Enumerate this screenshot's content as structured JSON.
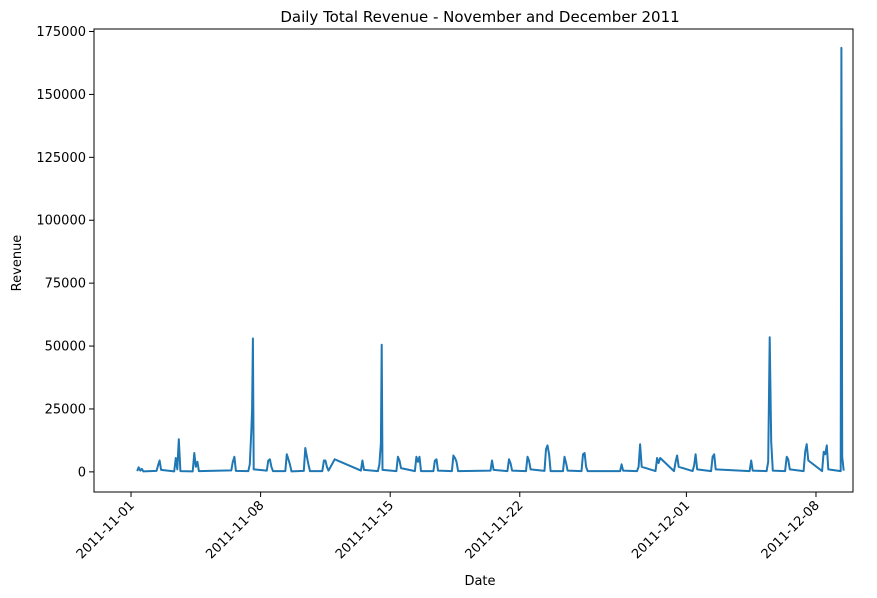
{
  "chart_data": {
    "type": "line",
    "title": "Daily Total Revenue - November and December 2011",
    "xlabel": "Date",
    "ylabel": "Revenue",
    "xlim": [
      "2011-10-30",
      "2011-12-10"
    ],
    "ylim": [
      -8000,
      176000
    ],
    "x_ticks": [
      "2011-11-01",
      "2011-11-08",
      "2011-11-15",
      "2011-11-22",
      "2011-12-01",
      "2011-12-08"
    ],
    "y_ticks": [
      0,
      25000,
      50000,
      75000,
      100000,
      125000,
      150000,
      175000
    ],
    "grid": false,
    "line_color": "#1f77b4",
    "series": [
      {
        "points": [
          [
            "2011-11-01 08:00",
            300
          ],
          [
            "2011-11-01 10:00",
            1800
          ],
          [
            "2011-11-01 12:00",
            500
          ],
          [
            "2011-11-01 14:00",
            1200
          ],
          [
            "2011-11-01 16:00",
            200
          ],
          [
            "2011-11-02 09:00",
            400
          ],
          [
            "2011-11-02 11:00",
            2500
          ],
          [
            "2011-11-02 13:00",
            4500
          ],
          [
            "2011-11-02 15:00",
            800
          ],
          [
            "2011-11-03 08:00",
            200
          ],
          [
            "2011-11-03 10:00",
            5500
          ],
          [
            "2011-11-03 12:00",
            1000
          ],
          [
            "2011-11-03 14:00",
            13000
          ],
          [
            "2011-11-03 16:00",
            300
          ],
          [
            "2011-11-04 08:00",
            200
          ],
          [
            "2011-11-04 10:00",
            7500
          ],
          [
            "2011-11-04 12:00",
            2000
          ],
          [
            "2011-11-04 14:00",
            4000
          ],
          [
            "2011-11-04 16:00",
            300
          ],
          [
            "2011-11-06 10:00",
            600
          ],
          [
            "2011-11-06 12:00",
            4000
          ],
          [
            "2011-11-06 14:00",
            6000
          ],
          [
            "2011-11-06 16:00",
            400
          ],
          [
            "2011-11-07 08:00",
            300
          ],
          [
            "2011-11-07 10:00",
            3000
          ],
          [
            "2011-11-07 12:00",
            17000
          ],
          [
            "2011-11-07 13:00",
            25000
          ],
          [
            "2011-11-07 14:00",
            53000
          ],
          [
            "2011-11-07 15:00",
            1000
          ],
          [
            "2011-11-08 08:00",
            500
          ],
          [
            "2011-11-08 10:00",
            4500
          ],
          [
            "2011-11-08 12:00",
            5000
          ],
          [
            "2011-11-08 14:00",
            2000
          ],
          [
            "2011-11-08 16:00",
            300
          ],
          [
            "2011-11-09 08:00",
            300
          ],
          [
            "2011-11-09 10:00",
            7000
          ],
          [
            "2011-11-09 12:00",
            5000
          ],
          [
            "2011-11-09 14:00",
            3000
          ],
          [
            "2011-11-09 16:00",
            200
          ],
          [
            "2011-11-10 08:00",
            400
          ],
          [
            "2011-11-10 10:00",
            9500
          ],
          [
            "2011-11-10 12:00",
            6000
          ],
          [
            "2011-11-10 14:00",
            3000
          ],
          [
            "2011-11-10 16:00",
            300
          ],
          [
            "2011-11-11 08:00",
            300
          ],
          [
            "2011-11-11 10:00",
            4500
          ],
          [
            "2011-11-11 12:00",
            4500
          ],
          [
            "2011-11-11 14:00",
            2000
          ],
          [
            "2011-11-11 16:00",
            500
          ],
          [
            "2011-11-12 00:00",
            5000
          ],
          [
            "2011-11-13 10:00",
            500
          ],
          [
            "2011-11-13 12:00",
            4500
          ],
          [
            "2011-11-13 14:00",
            800
          ],
          [
            "2011-11-14 08:00",
            300
          ],
          [
            "2011-11-14 10:00",
            3000
          ],
          [
            "2011-11-14 12:00",
            11500
          ],
          [
            "2011-11-14 13:00",
            50500
          ],
          [
            "2011-11-14 14:00",
            800
          ],
          [
            "2011-11-15 08:00",
            300
          ],
          [
            "2011-11-15 10:00",
            6000
          ],
          [
            "2011-11-15 12:00",
            4500
          ],
          [
            "2011-11-15 14:00",
            1500
          ],
          [
            "2011-11-16 08:00",
            300
          ],
          [
            "2011-11-16 10:00",
            6000
          ],
          [
            "2011-11-16 12:00",
            4000
          ],
          [
            "2011-11-16 14:00",
            6000
          ],
          [
            "2011-11-16 16:00",
            300
          ],
          [
            "2011-11-17 08:00",
            300
          ],
          [
            "2011-11-17 10:00",
            4500
          ],
          [
            "2011-11-17 12:00",
            5000
          ],
          [
            "2011-11-17 14:00",
            500
          ],
          [
            "2011-11-18 08:00",
            300
          ],
          [
            "2011-11-18 10:00",
            6500
          ],
          [
            "2011-11-18 12:00",
            5500
          ],
          [
            "2011-11-18 14:00",
            4000
          ],
          [
            "2011-11-18 16:00",
            300
          ],
          [
            "2011-11-20 10:00",
            500
          ],
          [
            "2011-11-20 12:00",
            4500
          ],
          [
            "2011-11-20 14:00",
            800
          ],
          [
            "2011-11-21 08:00",
            300
          ],
          [
            "2011-11-21 10:00",
            5000
          ],
          [
            "2011-11-21 12:00",
            3500
          ],
          [
            "2011-11-21 14:00",
            500
          ],
          [
            "2011-11-22 08:00",
            300
          ],
          [
            "2011-11-22 10:00",
            6000
          ],
          [
            "2011-11-22 12:00",
            4500
          ],
          [
            "2011-11-22 14:00",
            1000
          ],
          [
            "2011-11-23 08:00",
            400
          ],
          [
            "2011-11-23 10:00",
            9000
          ],
          [
            "2011-11-23 12:00",
            10500
          ],
          [
            "2011-11-23 14:00",
            7000
          ],
          [
            "2011-11-23 16:00",
            300
          ],
          [
            "2011-11-24 08:00",
            300
          ],
          [
            "2011-11-24 10:00",
            6000
          ],
          [
            "2011-11-24 12:00",
            3500
          ],
          [
            "2011-11-24 14:00",
            500
          ],
          [
            "2011-11-25 08:00",
            300
          ],
          [
            "2011-11-25 10:00",
            7000
          ],
          [
            "2011-11-25 12:00",
            7500
          ],
          [
            "2011-11-25 14:00",
            2000
          ],
          [
            "2011-11-25 16:00",
            300
          ],
          [
            "2011-11-27 10:00",
            300
          ],
          [
            "2011-11-27 12:00",
            3000
          ],
          [
            "2011-11-27 14:00",
            500
          ],
          [
            "2011-11-28 08:00",
            300
          ],
          [
            "2011-11-28 10:00",
            2000
          ],
          [
            "2011-11-28 12:00",
            11000
          ],
          [
            "2011-11-28 14:00",
            2000
          ],
          [
            "2011-11-29 08:00",
            300
          ],
          [
            "2011-11-29 10:00",
            5500
          ],
          [
            "2011-11-29 12:00",
            3500
          ],
          [
            "2011-11-29 14:00",
            5500
          ],
          [
            "2011-11-30 08:00",
            300
          ],
          [
            "2011-11-30 10:00",
            4000
          ],
          [
            "2011-11-30 12:00",
            6500
          ],
          [
            "2011-11-30 14:00",
            2000
          ],
          [
            "2011-12-01 08:00",
            300
          ],
          [
            "2011-12-01 10:00",
            2500
          ],
          [
            "2011-12-01 12:00",
            7000
          ],
          [
            "2011-12-01 14:00",
            1000
          ],
          [
            "2011-12-02 08:00",
            300
          ],
          [
            "2011-12-02 10:00",
            6000
          ],
          [
            "2011-12-02 12:00",
            7000
          ],
          [
            "2011-12-02 14:00",
            1000
          ],
          [
            "2011-12-04 10:00",
            300
          ],
          [
            "2011-12-04 12:00",
            4500
          ],
          [
            "2011-12-04 14:00",
            500
          ],
          [
            "2011-12-05 08:00",
            300
          ],
          [
            "2011-12-05 10:00",
            4000
          ],
          [
            "2011-12-05 12:00",
            53500
          ],
          [
            "2011-12-05 14:00",
            12000
          ],
          [
            "2011-12-05 16:00",
            500
          ],
          [
            "2011-12-06 08:00",
            300
          ],
          [
            "2011-12-06 10:00",
            6000
          ],
          [
            "2011-12-06 12:00",
            5000
          ],
          [
            "2011-12-06 14:00",
            1000
          ],
          [
            "2011-12-07 08:00",
            300
          ],
          [
            "2011-12-07 10:00",
            8000
          ],
          [
            "2011-12-07 12:00",
            11000
          ],
          [
            "2011-12-07 14:00",
            4500
          ],
          [
            "2011-12-08 08:00",
            300
          ],
          [
            "2011-12-08 10:00",
            8000
          ],
          [
            "2011-12-08 12:00",
            7000
          ],
          [
            "2011-12-08 14:00",
            10500
          ],
          [
            "2011-12-08 16:00",
            1000
          ],
          [
            "2011-12-09 08:00",
            300
          ],
          [
            "2011-12-09 09:00",
            168500
          ],
          [
            "2011-12-09 10:00",
            6000
          ],
          [
            "2011-12-09 12:00",
            500
          ]
        ]
      }
    ]
  }
}
